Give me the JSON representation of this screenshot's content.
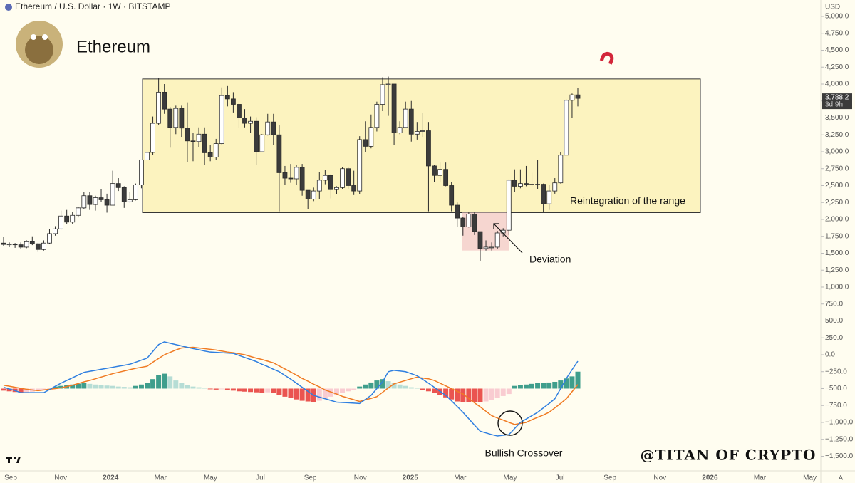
{
  "chart_data": {
    "type": "candlestick",
    "header": "Ethereum / U.S. Dollar · 1W · BITSTAMP",
    "title": "Ethereum",
    "currency": "USD",
    "auto_button": "A",
    "x_axis_labels": [
      "Sep",
      "Nov",
      "2024",
      "Mar",
      "May",
      "Jul",
      "Sep",
      "Nov",
      "2025",
      "Mar",
      "May",
      "Jul",
      "Sep",
      "Nov",
      "2026",
      "Mar",
      "May"
    ],
    "ylim": [
      -1716,
      5242
    ],
    "yticks": [
      {
        "value": 5000,
        "label": "5,000.0"
      },
      {
        "value": 4750,
        "label": "4,750.0"
      },
      {
        "value": 4500,
        "label": "4,500.0"
      },
      {
        "value": 4250,
        "label": "4,250.0"
      },
      {
        "value": 4000,
        "label": "4,000.0"
      },
      {
        "value": 3750,
        "label": "3,750.0"
      },
      {
        "value": 3500,
        "label": "3,500.0"
      },
      {
        "value": 3250,
        "label": "3,250.0"
      },
      {
        "value": 3000,
        "label": "3,000.0"
      },
      {
        "value": 2750,
        "label": "2,750.0"
      },
      {
        "value": 2500,
        "label": "2,500.0"
      },
      {
        "value": 2250,
        "label": "2,250.0"
      },
      {
        "value": 2000,
        "label": "2,000.0"
      },
      {
        "value": 1750,
        "label": "1,750.0"
      },
      {
        "value": 1500,
        "label": "1,500.0"
      },
      {
        "value": 1250,
        "label": "1,250.0"
      },
      {
        "value": 1000,
        "label": "1,000.0"
      },
      {
        "value": 750,
        "label": "750.0"
      },
      {
        "value": 500,
        "label": "500.0"
      },
      {
        "value": 250,
        "label": "250.0"
      },
      {
        "value": 0,
        "label": "0.0"
      },
      {
        "value": -250,
        "label": "−250.0"
      },
      {
        "value": -500,
        "label": "−500.0"
      },
      {
        "value": -750,
        "label": "−750.0"
      },
      {
        "value": -1000,
        "label": "−1,000.0"
      },
      {
        "value": -1250,
        "label": "−1,250.0"
      },
      {
        "value": -1500,
        "label": "−1,500.0"
      }
    ],
    "candles": {
      "up_color": "#ffffff",
      "down_color": "#3b3b3b",
      "outline_color": "#2b2b2b",
      "open": [
        1650,
        1630,
        1635,
        1625,
        1590,
        1670,
        1640,
        1555,
        1650,
        1790,
        1860,
        2050,
        1960,
        2060,
        2170,
        2350,
        2220,
        2320,
        2290,
        2210,
        2530,
        2470,
        2260,
        2290,
        2510,
        2880,
        2990,
        3420,
        3880,
        3630,
        3360,
        3640,
        3350,
        3160,
        3150,
        3260,
        2985,
        2920,
        3120,
        3830,
        3780,
        3700,
        3500,
        3420,
        3450,
        3000,
        3250,
        3440,
        3250,
        2690,
        2610,
        2600,
        2770,
        2430,
        2300,
        2420,
        2580,
        2650,
        2440,
        2470,
        2750,
        2500,
        2420,
        3180,
        3080,
        3360,
        3700,
        3990,
        4000,
        3280,
        3360,
        3630,
        3260,
        3300,
        3310,
        2790,
        2650,
        2740,
        2500,
        2210,
        2020,
        1890,
        2080,
        1820,
        1570,
        1590,
        1590,
        1800,
        1840,
        2580,
        2490,
        2530,
        2510,
        2520,
        2520,
        2230,
        2420,
        2540,
        2950,
        3760,
        3840
      ],
      "high": [
        1745,
        1660,
        1650,
        1660,
        1690,
        1750,
        1650,
        1690,
        1860,
        1900,
        2130,
        2140,
        2110,
        2180,
        2400,
        2400,
        2350,
        2450,
        2380,
        2720,
        2610,
        2490,
        2400,
        2530,
        2880,
        3030,
        3520,
        4090,
        4000,
        3660,
        3680,
        3680,
        3730,
        3280,
        3360,
        3360,
        3100,
        3190,
        3950,
        3970,
        3880,
        3720,
        3630,
        3520,
        3510,
        3260,
        3560,
        3560,
        3400,
        2790,
        2820,
        2800,
        2820,
        2420,
        2470,
        2700,
        2730,
        2670,
        2490,
        2770,
        2770,
        2720,
        3230,
        3450,
        3550,
        3740,
        4100,
        4110,
        4000,
        3450,
        3740,
        3750,
        3440,
        3570,
        3440,
        2800,
        2840,
        2840,
        2550,
        2250,
        2040,
        2100,
        2100,
        1820,
        1690,
        1660,
        1830,
        1870,
        2590,
        2740,
        2740,
        2790,
        2690,
        2880,
        2530,
        2510,
        2610,
        2990,
        3770,
        3860,
        3940
      ],
      "low": [
        1610,
        1590,
        1580,
        1560,
        1575,
        1620,
        1520,
        1540,
        1640,
        1760,
        1850,
        1930,
        1930,
        2030,
        2150,
        2140,
        2130,
        2260,
        2100,
        2210,
        2420,
        2170,
        2250,
        2280,
        2460,
        2840,
        2950,
        3400,
        3560,
        3060,
        3260,
        3210,
        2850,
        2860,
        3070,
        2810,
        2860,
        2880,
        3110,
        3670,
        3580,
        3350,
        3360,
        3280,
        2810,
        2990,
        3240,
        3100,
        2120,
        2510,
        2540,
        2510,
        2350,
        2150,
        2270,
        2300,
        2520,
        2310,
        2370,
        2450,
        2450,
        2360,
        2370,
        3000,
        3050,
        3300,
        3600,
        3530,
        3100,
        3260,
        3350,
        3150,
        3180,
        3210,
        2120,
        2550,
        2550,
        2490,
        2120,
        1890,
        1760,
        1880,
        1770,
        1390,
        1540,
        1540,
        1560,
        1750,
        1770,
        2410,
        2460,
        2490,
        2470,
        2450,
        2110,
        2140,
        2380,
        2530,
        2950,
        3500,
        3670
      ],
      "close": [
        1630,
        1635,
        1625,
        1590,
        1670,
        1640,
        1555,
        1650,
        1790,
        1860,
        2050,
        1960,
        2060,
        2170,
        2350,
        2220,
        2320,
        2290,
        2210,
        2530,
        2470,
        2260,
        2290,
        2510,
        2880,
        2990,
        3420,
        3880,
        3630,
        3360,
        3640,
        3350,
        3160,
        3150,
        3260,
        2985,
        2920,
        3120,
        3830,
        3780,
        3700,
        3500,
        3420,
        3450,
        3000,
        3250,
        3440,
        3250,
        2690,
        2610,
        2600,
        2770,
        2430,
        2300,
        2420,
        2580,
        2650,
        2440,
        2470,
        2750,
        2500,
        2420,
        3180,
        3080,
        3360,
        3700,
        3990,
        4000,
        3280,
        3360,
        3630,
        3260,
        3300,
        3310,
        2790,
        2650,
        2740,
        2500,
        2210,
        2020,
        1890,
        2080,
        1820,
        1570,
        1590,
        1590,
        1800,
        1840,
        2580,
        2490,
        2530,
        2510,
        2520,
        2520,
        2230,
        2420,
        2540,
        2950,
        3760,
        3840,
        3788.2
      ]
    },
    "last_price_label": "3,788.2",
    "countdown": "3d 9h",
    "macd": {
      "baseline": -500,
      "macd_color": "#2f7fe0",
      "signal_color": "#f07a22",
      "hist_colors": {
        "up_grow": "#3f9e8c",
        "up_fall": "#b6ddd5",
        "down_grow": "#ea5450",
        "down_fall": "#f9ccd1"
      },
      "macd_line": [
        -480,
        -505,
        -530,
        -560,
        -560,
        -560,
        -560,
        -560,
        -515,
        -465,
        -420,
        -380,
        -340,
        -300,
        -260,
        -245,
        -230,
        -215,
        -200,
        -185,
        -170,
        -155,
        -140,
        -110,
        -80,
        -50,
        50,
        150,
        190,
        170,
        150,
        130,
        110,
        90,
        75,
        55,
        40,
        35,
        30,
        25,
        20,
        -10,
        -40,
        -70,
        -100,
        -140,
        -175,
        -215,
        -250,
        -305,
        -360,
        -420,
        -480,
        -540,
        -600,
        -625,
        -650,
        -675,
        -700,
        -705,
        -710,
        -715,
        -720,
        -660,
        -600,
        -500,
        -400,
        -250,
        -230,
        -240,
        -250,
        -280,
        -310,
        -365,
        -420,
        -480,
        -540,
        -600,
        -680,
        -765,
        -850,
        -945,
        -1040,
        -1130,
        -1155,
        -1180,
        -1200,
        -1190,
        -1180,
        -1090,
        -1000,
        -950,
        -900,
        -850,
        -785,
        -720,
        -650,
        -500,
        -350,
        -220,
        -95
      ],
      "signal_line": [
        -450,
        -465,
        -480,
        -495,
        -510,
        -520,
        -530,
        -520,
        -510,
        -500,
        -490,
        -470,
        -450,
        -425,
        -400,
        -380,
        -355,
        -330,
        -305,
        -280,
        -260,
        -240,
        -220,
        -200,
        -185,
        -170,
        -110,
        -55,
        0,
        35,
        70,
        100,
        105,
        110,
        100,
        90,
        80,
        70,
        55,
        40,
        30,
        15,
        0,
        -25,
        -50,
        -70,
        -95,
        -120,
        -165,
        -210,
        -255,
        -300,
        -350,
        -390,
        -435,
        -475,
        -520,
        -550,
        -580,
        -615,
        -640,
        -665,
        -690,
        -665,
        -645,
        -620,
        -555,
        -490,
        -430,
        -405,
        -380,
        -355,
        -330,
        -345,
        -355,
        -380,
        -420,
        -460,
        -500,
        -540,
        -580,
        -645,
        -710,
        -770,
        -835,
        -900,
        -935,
        -965,
        -1000,
        -1030,
        -1015,
        -1000,
        -960,
        -925,
        -890,
        -850,
        -785,
        -720,
        -650,
        -545,
        -440
      ],
      "histogram": [
        -530,
        -540,
        -550,
        -560,
        -555,
        -545,
        -535,
        -525,
        -510,
        -470,
        -460,
        -450,
        -440,
        -430,
        -420,
        -430,
        -440,
        -450,
        -455,
        -460,
        -470,
        -475,
        -480,
        -460,
        -440,
        -420,
        -360,
        -300,
        -280,
        -320,
        -380,
        -420,
        -450,
        -470,
        -480,
        -490,
        -510,
        -515,
        -510,
        -520,
        -530,
        -540,
        -545,
        -550,
        -555,
        -560,
        -555,
        -565,
        -600,
        -620,
        -640,
        -660,
        -680,
        -690,
        -700,
        -680,
        -650,
        -620,
        -600,
        -560,
        -540,
        -520,
        -470,
        -440,
        -410,
        -380,
        -360,
        -390,
        -420,
        -440,
        -460,
        -480,
        -495,
        -520,
        -540,
        -560,
        -600,
        -630,
        -660,
        -690,
        -700,
        -700,
        -700,
        -700,
        -690,
        -670,
        -640,
        -610,
        -580,
        -460,
        -450,
        -440,
        -430,
        -420,
        -420,
        -410,
        -400,
        -380,
        -350,
        -320,
        -250
      ]
    },
    "range_box": {
      "top": 4075,
      "bottom": 2100,
      "color": "#fcf3bf",
      "label": "Reintegration of the range"
    },
    "deviation_box": {
      "top": 2100,
      "bottom": 1540,
      "color": "#f6d6d0",
      "label": "Deviation"
    },
    "crossover_label": "Bullish Crossover",
    "watermark": "@TITAN OF CRYPTO"
  }
}
